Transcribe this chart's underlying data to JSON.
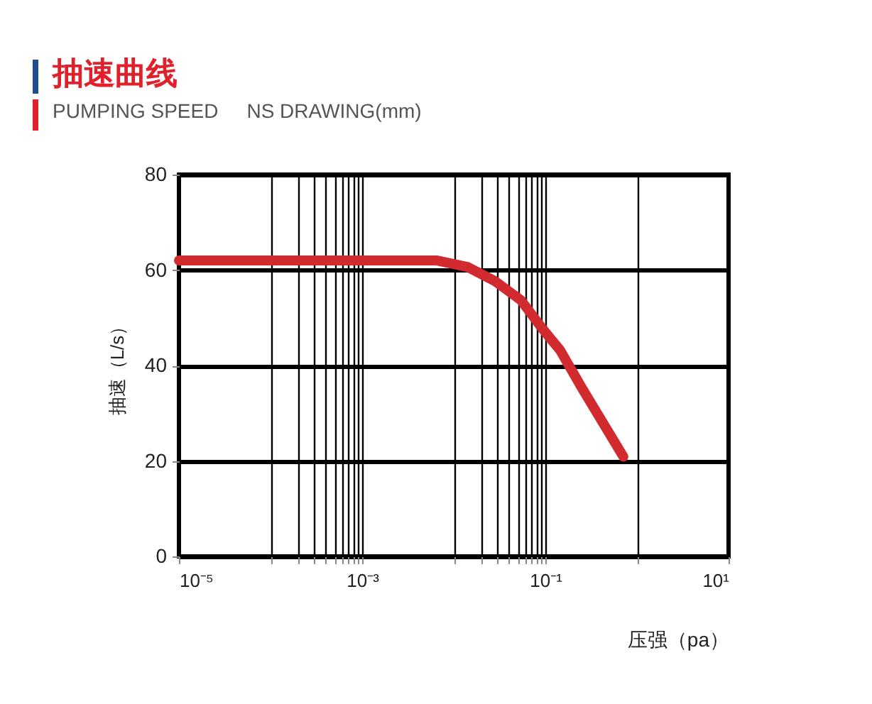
{
  "chart_data": {
    "type": "line",
    "title": "抽速曲线",
    "subtitle": "PUMPING SPEED",
    "annotations": [
      "NS DRAWING(mm)"
    ],
    "xlabel": "压强（pa）",
    "ylabel": "抽速（L/s）",
    "x": [
      1e-05,
      0.0066,
      0.0143,
      0.028,
      0.054,
      0.093,
      0.145,
      0.25,
      0.71
    ],
    "series": [
      {
        "color": "#d12a2f",
        "values": [
          62,
          62,
          60.6,
          57.7,
          53.7,
          47.7,
          43.2,
          35.3,
          20.9
        ]
      }
    ],
    "log": "x",
    "grid": true,
    "xlim": [
      1e-05,
      10
    ],
    "xticks": [
      {
        "value": 1e-05,
        "label": "10⁻⁵"
      },
      {
        "value": 0.0001,
        "label": null
      },
      {
        "value": 0.0002,
        "label": null
      },
      {
        "value": 0.0003,
        "label": null
      },
      {
        "value": 0.0004,
        "label": null
      },
      {
        "value": 0.0005,
        "label": null
      },
      {
        "value": 0.0006,
        "label": null
      },
      {
        "value": 0.0007,
        "label": null
      },
      {
        "value": 0.0008,
        "label": null
      },
      {
        "value": 0.0009,
        "label": null
      },
      {
        "value": 0.001,
        "label": "10⁻³"
      },
      {
        "value": 0.01,
        "label": null
      },
      {
        "value": 0.02,
        "label": null
      },
      {
        "value": 0.03,
        "label": null
      },
      {
        "value": 0.04,
        "label": null
      },
      {
        "value": 0.05,
        "label": null
      },
      {
        "value": 0.06,
        "label": null
      },
      {
        "value": 0.07,
        "label": null
      },
      {
        "value": 0.08,
        "label": null
      },
      {
        "value": 0.09,
        "label": null
      },
      {
        "value": 0.1,
        "label": "10⁻¹"
      },
      {
        "value": 1,
        "label": null
      },
      {
        "value": 10,
        "label": "10¹"
      }
    ],
    "ylim": [
      0,
      80
    ],
    "yticks": [
      0,
      20,
      40,
      60,
      80
    ]
  }
}
